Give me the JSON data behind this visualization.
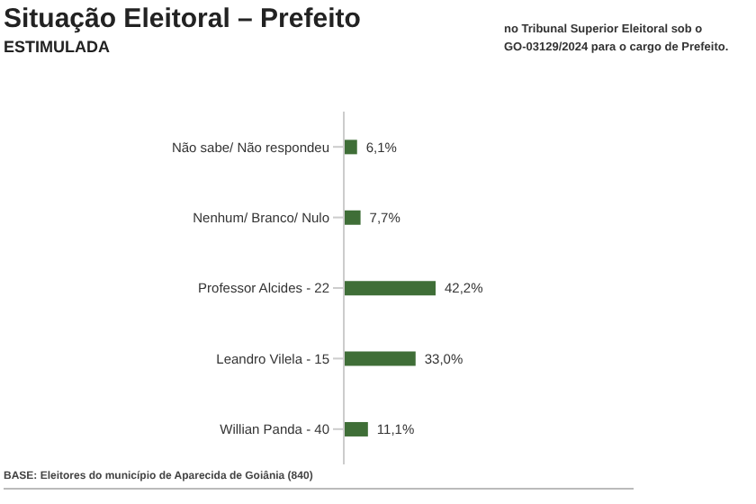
{
  "chart_data": {
    "type": "bar",
    "orientation": "horizontal",
    "title": "Situação Eleitoral – Prefeito",
    "subtitle": "ESTIMULADA",
    "annotations": [
      "no Tribunal Superior Eleitoral sob o",
      "GO-03129/2024 para o cargo de Prefeito.",
      "BASE: Eleitores do município de Aparecida de Goiânia (840)"
    ],
    "categories": [
      "Não sabe/ Não respondeu",
      "Nenhum/ Branco/ Nulo",
      "Professor Alcides - 22",
      "Leandro Vilela - 15",
      "Willian Panda - 40"
    ],
    "values": [
      6.1,
      7.7,
      42.2,
      33.0,
      11.1
    ],
    "value_labels": [
      "6,1%",
      "7,7%",
      "42,2%",
      "33,0%",
      "11,1%"
    ],
    "color": "#3f6e37"
  }
}
